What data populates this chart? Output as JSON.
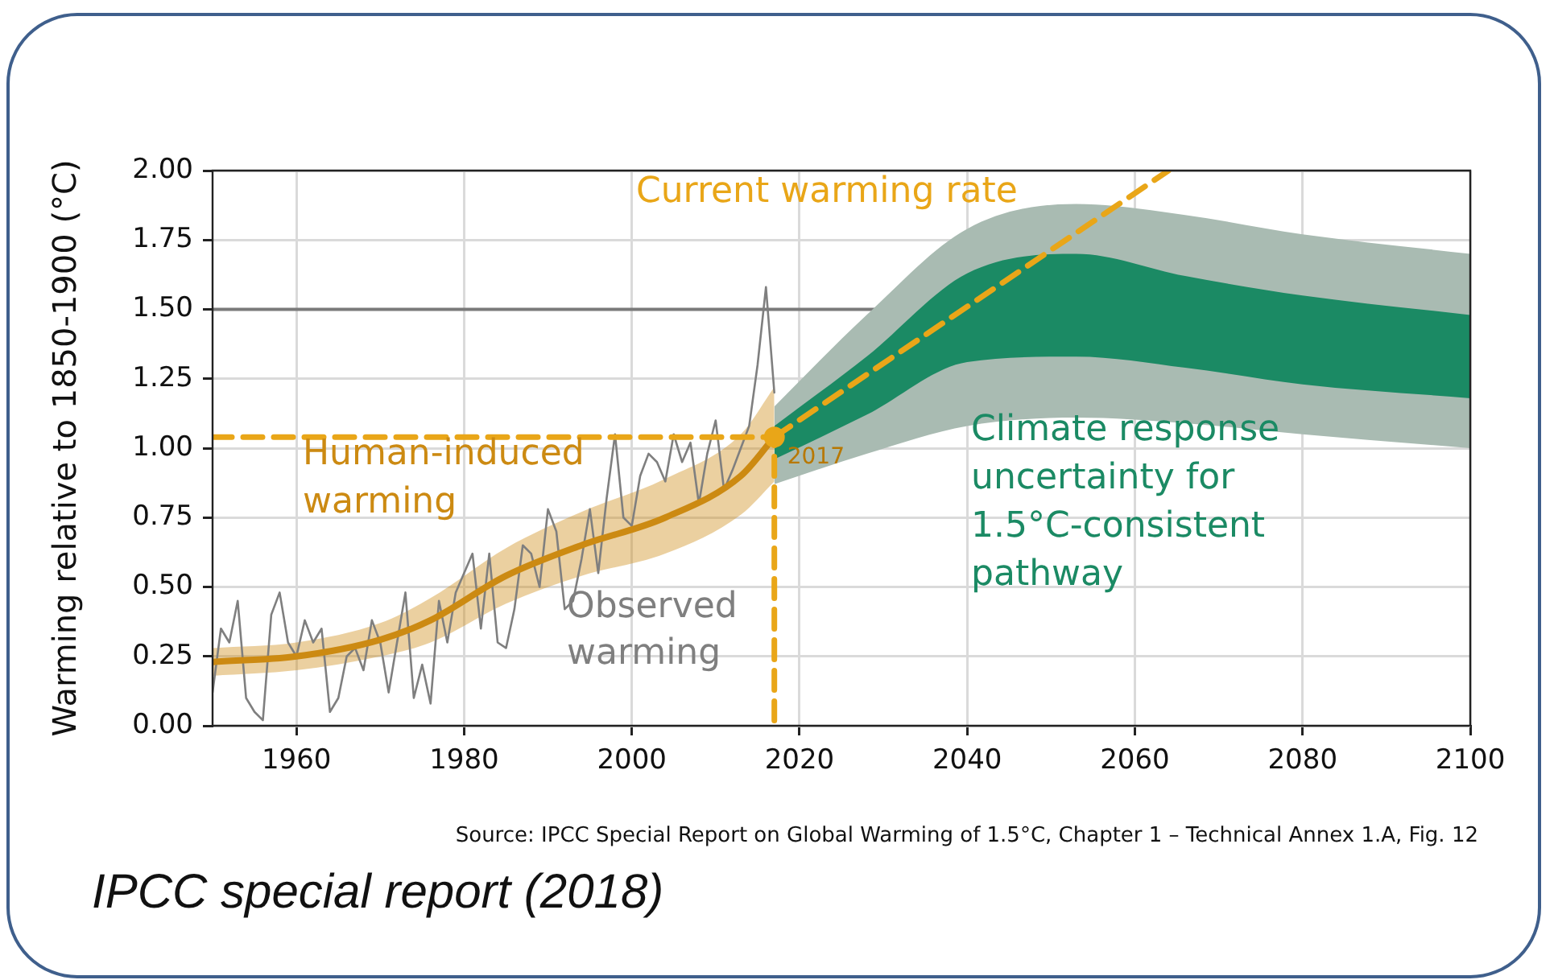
{
  "chart_data": {
    "type": "line",
    "ylabel": "Warming relative to 1850-1900 (°C)",
    "xlim": [
      1950,
      2100
    ],
    "xticks": [
      1960,
      1980,
      2000,
      2020,
      2040,
      2060,
      2080,
      2100
    ],
    "ylim": [
      0,
      2
    ],
    "yticks": [
      {
        "value": 0,
        "label": "0.00"
      },
      {
        "value": 0.25,
        "label": "0.25"
      },
      {
        "value": 0.5,
        "label": "0.50"
      },
      {
        "value": 0.75,
        "label": "0.75"
      },
      {
        "value": 1,
        "label": "1.00"
      },
      {
        "value": 1.25,
        "label": "1.25"
      },
      {
        "value": 1.5,
        "label": "1.50"
      },
      {
        "value": 1.75,
        "label": "1.75"
      },
      {
        "value": 2,
        "label": "2.00"
      }
    ],
    "grid": true,
    "legend": false,
    "series": [
      {
        "color": "#a9bbb2",
        "x": [
          2017,
          2028,
          2040,
          2053,
          2066,
          2080,
          2100
        ],
        "values": [
          null,
          null,
          null,
          null,
          null,
          null,
          null
        ],
        "lower": [
          0.87,
          0.98,
          1.08,
          1.11,
          1.09,
          1.05,
          1.0
        ],
        "upper": [
          1.15,
          1.48,
          1.79,
          1.88,
          1.84,
          1.77,
          1.7
        ]
      },
      {
        "name": "Climate response uncertainty for 1.5°C-consistent pathway",
        "color": "#1b8a64",
        "x": [
          2017,
          2028,
          2040,
          2053,
          2066,
          2080,
          2100
        ],
        "values": [
          null,
          null,
          null,
          null,
          null,
          null,
          null
        ],
        "lower": [
          0.96,
          1.12,
          1.31,
          1.33,
          1.29,
          1.23,
          1.18
        ],
        "upper": [
          1.08,
          1.33,
          1.63,
          1.7,
          1.62,
          1.55,
          1.48
        ]
      },
      {
        "name": "Observed warming",
        "type": "line",
        "color": "#7f7f7f",
        "x": [
          1950,
          1951,
          1952,
          1953,
          1954,
          1955,
          1956,
          1957,
          1958,
          1959,
          1960,
          1961,
          1962,
          1963,
          1964,
          1965,
          1966,
          1967,
          1968,
          1969,
          1970,
          1971,
          1972,
          1973,
          1974,
          1975,
          1976,
          1977,
          1978,
          1979,
          1980,
          1981,
          1982,
          1983,
          1984,
          1985,
          1986,
          1987,
          1988,
          1989,
          1990,
          1991,
          1992,
          1993,
          1994,
          1995,
          1996,
          1997,
          1998,
          1999,
          2000,
          2001,
          2002,
          2003,
          2004,
          2005,
          2006,
          2007,
          2008,
          2009,
          2010,
          2011,
          2012,
          2013,
          2014,
          2015,
          2016,
          2017
        ],
        "values": [
          0.12,
          0.35,
          0.3,
          0.45,
          0.1,
          0.05,
          0.02,
          0.4,
          0.48,
          0.3,
          0.25,
          0.38,
          0.3,
          0.35,
          0.05,
          0.1,
          0.25,
          0.28,
          0.2,
          0.38,
          0.3,
          0.12,
          0.3,
          0.48,
          0.1,
          0.22,
          0.08,
          0.45,
          0.3,
          0.48,
          0.55,
          0.62,
          0.35,
          0.62,
          0.3,
          0.28,
          0.42,
          0.65,
          0.62,
          0.5,
          0.78,
          0.7,
          0.42,
          0.45,
          0.6,
          0.78,
          0.55,
          0.82,
          1.05,
          0.75,
          0.72,
          0.9,
          0.98,
          0.95,
          0.88,
          1.05,
          0.95,
          1.02,
          0.8,
          0.98,
          1.1,
          0.85,
          0.92,
          1.0,
          1.08,
          1.3,
          1.58,
          1.2
        ]
      },
      {
        "name": "Human-induced warming",
        "type": "line",
        "color": "#cc8a12",
        "line_style": "solid",
        "x": [
          1950,
          1960,
          1970,
          1976,
          1985,
          1994,
          2004,
          2013,
          2017
        ],
        "values": [
          0.23,
          0.25,
          0.31,
          0.38,
          0.54,
          0.65,
          0.75,
          0.9,
          1.04
        ],
        "lower": [
          0.18,
          0.2,
          0.25,
          0.3,
          0.44,
          0.54,
          0.62,
          0.76,
          0.88
        ],
        "upper": [
          0.28,
          0.3,
          0.37,
          0.46,
          0.64,
          0.77,
          0.89,
          1.05,
          1.22
        ]
      },
      {
        "name": "Current warming rate",
        "type": "line",
        "color": "#e9a618",
        "line_style": "dashed",
        "x": [
          2017,
          2064
        ],
        "values": [
          1.04,
          2.0
        ]
      },
      {
        "type": "line",
        "color": "#e9a618",
        "line_style": "dashed",
        "x": [
          1950,
          2017,
          2017
        ],
        "values": [
          1.04,
          1.04,
          0
        ]
      },
      {
        "type": "scatter",
        "marker": "circle",
        "color": "#e9a618",
        "x": [
          2017
        ],
        "values": [
          1.04
        ]
      }
    ],
    "ref_lines": [
      {
        "axis": "y",
        "value": 1.5,
        "color": "#7a7a7a"
      }
    ],
    "annotations": [
      {
        "text": "2017",
        "x": 2017,
        "y": 1.04
      },
      "Source: IPCC Special Report on Global Warming of 1.5°C, Chapter 1 – Technical Annex 1.A, Fig. 12",
      "IPCC special report (2018)"
    ]
  }
}
